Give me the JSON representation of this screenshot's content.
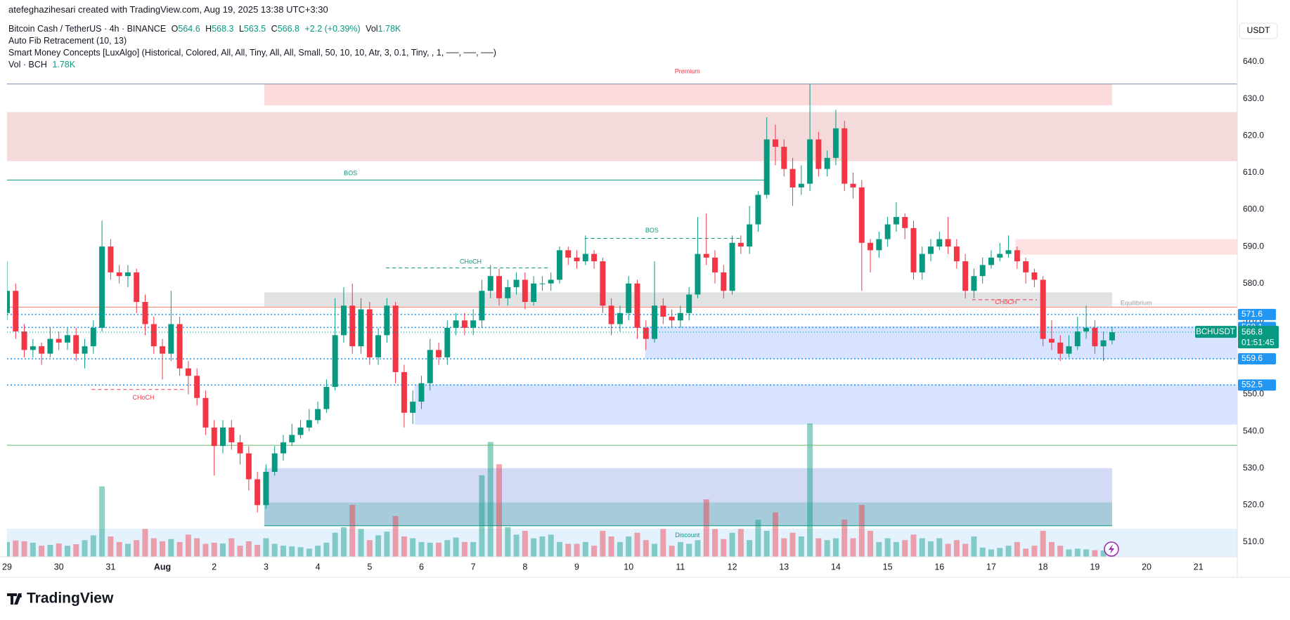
{
  "header": {
    "attribution": "atefeghazihesari created with TradingView.com, Aug 19, 2025 13:38 UTC+3:30",
    "brand": "TradingView"
  },
  "chart_data": {
    "type": "candlestick",
    "symbol": "Bitcoin Cash / TetherUS · 4h · BINANCE",
    "o_label": "O",
    "h_label": "H",
    "l_label": "L",
    "c_label": "C",
    "change": "+2.2 (+0.39%)",
    "vol_label": "Vol",
    "volume_label": "1.78K",
    "indicators": [
      "Auto Fib Retracement (10, 13)",
      "Smart Money Concepts [LuxAlgo] (Historical, Colored, All, All, Tiny, All, All, Small, 50, 10, 10, Atr, 3, 0.1, Tiny, , 1, ──, ──, ──)"
    ],
    "volume_name": "Vol · BCH",
    "currency": "USDT",
    "symbol_label": "BCHUSDT",
    "countdown": "01:51:45",
    "up_color": "#089981",
    "down_color": "#f23645",
    "xlim": [
      0,
      142.5
    ],
    "ylim": [
      506,
      651.8
    ],
    "yticks": [
      {
        "value": 510,
        "label": "510.0"
      },
      {
        "value": 520,
        "label": "520.0"
      },
      {
        "value": 530,
        "label": "530.0"
      },
      {
        "value": 540,
        "label": "540.0"
      },
      {
        "value": 550,
        "label": "550.0"
      },
      {
        "value": 560,
        "label": "560.0"
      },
      {
        "value": 570,
        "label": "570.0"
      },
      {
        "value": 580,
        "label": "580.0"
      },
      {
        "value": 590,
        "label": "590.0"
      },
      {
        "value": 600,
        "label": "600.0"
      },
      {
        "value": 610,
        "label": "610.0"
      },
      {
        "value": 620,
        "label": "620.0"
      },
      {
        "value": 630,
        "label": "630.0"
      },
      {
        "value": 640,
        "label": "640.0"
      }
    ],
    "xticks": [
      {
        "value": 0,
        "label": "29"
      },
      {
        "value": 6,
        "label": "30"
      },
      {
        "value": 12,
        "label": "31"
      },
      {
        "value": 18,
        "label": "Aug"
      },
      {
        "value": 24,
        "label": "2"
      },
      {
        "value": 30,
        "label": "3"
      },
      {
        "value": 36,
        "label": "4"
      },
      {
        "value": 42,
        "label": "5"
      },
      {
        "value": 48,
        "label": "6"
      },
      {
        "value": 54,
        "label": "7"
      },
      {
        "value": 60,
        "label": "8"
      },
      {
        "value": 66,
        "label": "9"
      },
      {
        "value": 72,
        "label": "10"
      },
      {
        "value": 78,
        "label": "11"
      },
      {
        "value": 84,
        "label": "12"
      },
      {
        "value": 90,
        "label": "13"
      },
      {
        "value": 96,
        "label": "14"
      },
      {
        "value": 102,
        "label": "15"
      },
      {
        "value": 108,
        "label": "16"
      },
      {
        "value": 114,
        "label": "17"
      },
      {
        "value": 120,
        "label": "18"
      },
      {
        "value": 126,
        "label": "19"
      },
      {
        "value": 132,
        "label": "20"
      },
      {
        "value": 138,
        "label": "21"
      }
    ],
    "open": [
      572,
      578,
      567,
      562,
      563,
      561,
      565,
      564,
      566,
      561,
      563,
      568,
      590,
      583,
      582,
      583,
      575,
      569,
      563,
      561,
      569,
      557,
      555,
      549,
      541,
      536,
      541,
      537,
      534,
      527,
      520,
      529,
      534,
      537,
      539,
      541,
      543,
      546,
      552,
      566,
      574,
      563,
      573,
      560,
      566,
      574,
      556,
      545,
      548,
      553,
      562,
      560,
      568,
      570,
      568,
      570,
      578,
      582,
      576,
      579,
      581,
      575,
      580,
      580,
      581,
      589,
      587,
      586,
      588,
      586,
      574,
      569,
      572,
      580,
      568,
      565,
      574,
      571,
      570,
      572,
      577,
      588,
      587,
      583,
      578,
      591,
      590,
      596,
      604,
      619,
      617,
      611,
      606,
      607,
      619,
      611,
      614,
      622,
      607,
      606,
      591,
      589,
      592,
      596,
      598,
      595,
      583,
      588,
      590,
      592,
      590,
      586,
      578,
      582,
      585,
      587,
      588,
      589,
      586,
      583,
      581,
      565,
      564,
      561,
      563,
      567,
      568,
      563,
      564.6
    ],
    "high": [
      586,
      580,
      569,
      565,
      564,
      568,
      567,
      568,
      568,
      565,
      570,
      597,
      592,
      585,
      585,
      584,
      577,
      571,
      565,
      578,
      571,
      559,
      557,
      551,
      543,
      543,
      543,
      539,
      536,
      529,
      531,
      536,
      539,
      542,
      543,
      546,
      548,
      554,
      576,
      579,
      580,
      576,
      575,
      568,
      576,
      575,
      558,
      551,
      555,
      565,
      564,
      570,
      572,
      572,
      573,
      581,
      585,
      584,
      581,
      583,
      583,
      582,
      582,
      583,
      590,
      590,
      589,
      593,
      589,
      587,
      576,
      574,
      582,
      581,
      570,
      586,
      576,
      573,
      574,
      579,
      598,
      599,
      589,
      585,
      593,
      593,
      601,
      605,
      625,
      623,
      619,
      614,
      612,
      634,
      621,
      616,
      627,
      624,
      610,
      608,
      592,
      594,
      598,
      602,
      599,
      597,
      590,
      592,
      594,
      598,
      592,
      588,
      584,
      587,
      589,
      591,
      593,
      590,
      587,
      584,
      582,
      570,
      566,
      566,
      571,
      574,
      570,
      567,
      568.3
    ],
    "low": [
      570,
      565,
      560,
      560,
      558,
      560,
      562,
      562,
      559,
      557,
      561,
      567,
      581,
      580,
      579,
      572,
      566,
      561,
      554,
      559,
      555,
      550,
      547,
      539,
      528,
      534,
      535,
      531,
      524,
      518,
      519,
      528,
      532,
      536,
      538,
      540,
      542,
      545,
      551,
      564,
      561,
      561,
      558,
      558,
      564,
      553,
      541,
      542,
      546,
      551,
      558,
      558,
      566,
      566,
      566,
      568,
      576,
      574,
      574,
      577,
      573,
      574,
      578,
      578,
      580,
      585,
      584,
      585,
      584,
      572,
      566,
      567,
      570,
      565,
      562,
      564,
      569,
      568,
      568,
      570,
      576,
      585,
      580,
      576,
      577,
      588,
      588,
      594,
      603,
      612,
      609,
      601,
      604,
      605,
      609,
      609,
      612,
      605,
      603,
      578,
      583,
      587,
      590,
      594,
      592,
      581,
      581,
      586,
      589,
      588,
      584,
      576,
      576,
      580,
      584,
      586,
      587,
      584,
      580,
      579,
      563,
      562,
      559,
      560,
      562,
      565,
      561,
      559,
      563.5
    ],
    "close": [
      578,
      567,
      562,
      563,
      561,
      565,
      564,
      566,
      561,
      563,
      568,
      590,
      583,
      582,
      583,
      575,
      569,
      563,
      561,
      569,
      557,
      555,
      549,
      541,
      536,
      541,
      537,
      534,
      527,
      520,
      529,
      534,
      537,
      539,
      541,
      543,
      546,
      552,
      566,
      574,
      563,
      573,
      560,
      566,
      574,
      556,
      545,
      548,
      553,
      562,
      560,
      568,
      570,
      568,
      570,
      578,
      582,
      576,
      579,
      581,
      575,
      580,
      580,
      581,
      589,
      587,
      586,
      588,
      586,
      574,
      569,
      572,
      580,
      568,
      565,
      574,
      571,
      570,
      572,
      577,
      588,
      587,
      583,
      578,
      591,
      590,
      596,
      604,
      619,
      617,
      611,
      606,
      607,
      619,
      611,
      614,
      622,
      607,
      606,
      591,
      589,
      592,
      596,
      598,
      595,
      583,
      588,
      590,
      592,
      590,
      586,
      578,
      582,
      585,
      587,
      588,
      589,
      586,
      583,
      581,
      565,
      564,
      561,
      563,
      567,
      568,
      563,
      564.6,
      566.8
    ],
    "volume": [
      4000,
      4400,
      4200,
      3800,
      3000,
      3200,
      3600,
      3000,
      3400,
      4500,
      5800,
      19000,
      5500,
      4000,
      3500,
      4500,
      7500,
      5000,
      4200,
      4800,
      4000,
      6000,
      5000,
      3500,
      3800,
      3600,
      5000,
      3000,
      4200,
      3200,
      5000,
      3500,
      3000,
      2800,
      2600,
      2200,
      3000,
      3800,
      6500,
      8000,
      14000,
      7500,
      4500,
      5800,
      6800,
      11000,
      5500,
      5000,
      4000,
      3800,
      3800,
      4500,
      5200,
      4000,
      4000,
      22000,
      31000,
      25000,
      8000,
      6000,
      7000,
      5000,
      5500,
      6000,
      4000,
      3500,
      3500,
      4000,
      3000,
      7000,
      5500,
      4000,
      5500,
      6500,
      4500,
      3500,
      7500,
      3000,
      4000,
      3500,
      4500,
      15500,
      7500,
      4800,
      6500,
      7500,
      4500,
      10000,
      7000,
      12000,
      5000,
      6500,
      5500,
      36000,
      5000,
      4500,
      5000,
      10000,
      5000,
      14000,
      7000,
      4000,
      5000,
      4000,
      4500,
      6000,
      5000,
      4200,
      5000,
      3500,
      4500,
      3500,
      5500,
      2500,
      2000,
      2400,
      3000,
      4000,
      2200,
      3000,
      7000,
      4000,
      3000,
      2000,
      2200,
      2000,
      1800,
      1700,
      1780
    ],
    "zones": [
      {
        "top": 634,
        "bottom": 628.2,
        "from": 29.8,
        "to": 128,
        "color": "rgba(242,54,69,0.18)"
      },
      {
        "top": 626.4,
        "bottom": 613.1,
        "from": 0,
        "to": 142.5,
        "color": "rgba(204,72,82,0.2)"
      },
      {
        "top": 577.6,
        "bottom": 573.8,
        "from": 29.8,
        "to": 128,
        "color": "rgba(120,123,134,0.22)"
      },
      {
        "top": 530,
        "bottom": 514.4,
        "from": 29.8,
        "to": 128,
        "color": "rgba(52,86,214,0.22)"
      },
      {
        "top": 520.7,
        "bottom": 514.4,
        "from": 29.8,
        "to": 128,
        "color": "rgba(8,153,129,0.22)"
      },
      {
        "top": 552.7,
        "bottom": 541.8,
        "from": 47.2,
        "to": 142.5,
        "color": "rgba(41,98,255,0.18)"
      },
      {
        "top": 568.4,
        "bottom": 559.6,
        "from": 73.9,
        "to": 142.5,
        "color": "rgba(41,98,255,0.18)"
      },
      {
        "top": 592,
        "bottom": 587.8,
        "from": 116.8,
        "to": 142.5,
        "color": "rgba(242,54,69,0.15)"
      },
      {
        "top": 513.6,
        "bottom": 506,
        "from": 0,
        "to": 142.5,
        "color": "rgba(33,150,243,0.12)"
      }
    ],
    "hlines": [
      {
        "value": 634,
        "from": 0,
        "to": 142.5,
        "color": "#7e8cb5",
        "style": "solid"
      },
      {
        "value": 573.6,
        "from": 0,
        "to": 142.5,
        "color": "#f57c6e",
        "style": "solid"
      },
      {
        "value": 608,
        "from": 0,
        "to": 87.7,
        "color": "#089981",
        "style": "solid"
      },
      {
        "value": 536.2,
        "from": 0,
        "to": 142.5,
        "color": "#66bb6a",
        "style": "solid"
      },
      {
        "value": 514.4,
        "from": 29.8,
        "to": 128,
        "color": "#089981",
        "style": "solid"
      },
      {
        "value": 551.3,
        "from": 9.8,
        "to": 20.7,
        "color": "#f23645",
        "style": "dashed"
      },
      {
        "value": 584.2,
        "from": 43.9,
        "to": 62.9,
        "color": "#089981",
        "style": "dashed"
      },
      {
        "value": 592.2,
        "from": 66.9,
        "to": 84.9,
        "color": "#089981",
        "style": "dashed"
      },
      {
        "value": 575.6,
        "from": 111.8,
        "to": 119.3,
        "color": "#f23645",
        "style": "dashed"
      }
    ],
    "levels": [
      {
        "value": 571.6,
        "color": "#2196f3"
      },
      {
        "value": 568.1,
        "color": "#2196f3"
      },
      {
        "value": 559.6,
        "color": "#2196f3"
      },
      {
        "value": 552.5,
        "color": "#2196f3"
      }
    ],
    "annotations": [
      {
        "text": "Premium",
        "x": 78.8,
        "y": 637.3,
        "color": "#f23645"
      },
      {
        "text": "BOS",
        "x": 39.8,
        "y": 609.8,
        "color": "#089981"
      },
      {
        "text": "BOS",
        "x": 74.7,
        "y": 594.3,
        "color": "#089981"
      },
      {
        "text": "CHoCH",
        "x": 53.7,
        "y": 585.8,
        "color": "#089981"
      },
      {
        "text": "CHoCH",
        "x": 15.8,
        "y": 549,
        "color": "#f23645"
      },
      {
        "text": "CHoCH",
        "x": 115.7,
        "y": 574.9,
        "color": "#f23645"
      },
      {
        "text": "Equilibrium",
        "x": 130.8,
        "y": 574.6,
        "color": "#9598a1"
      },
      {
        "text": "Discount",
        "x": 78.8,
        "y": 511.8,
        "color": "#089981"
      }
    ]
  }
}
